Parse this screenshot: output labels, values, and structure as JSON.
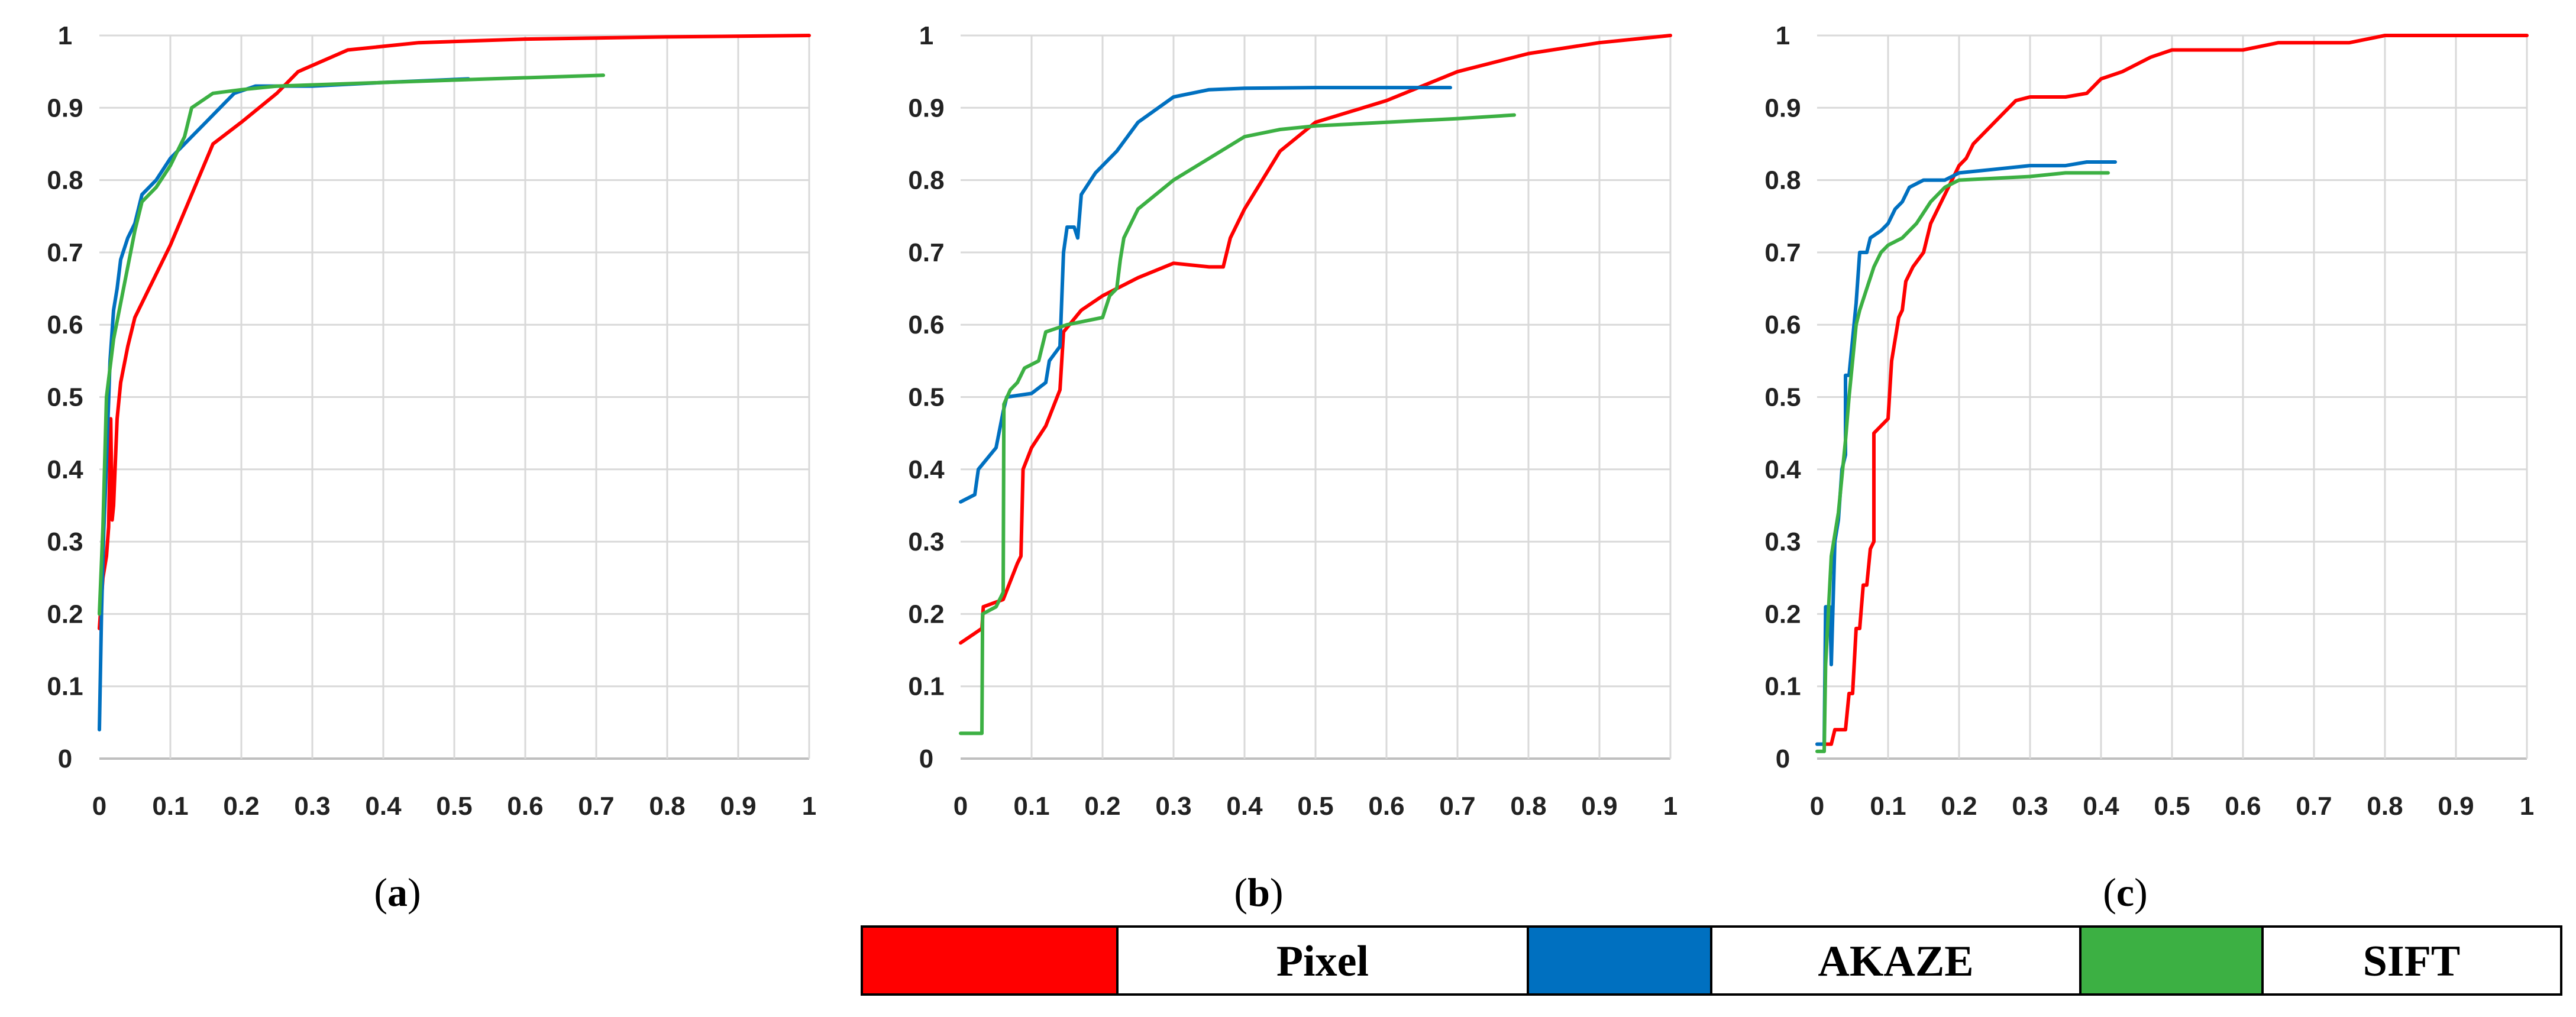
{
  "colors": {
    "Pixel": "#ff0000",
    "AKAZE": "#0070c0",
    "SIFT": "#3cb043"
  },
  "legend": {
    "pixel": "Pixel",
    "akaze": "AKAZE",
    "sift": "SIFT"
  },
  "chart_data": [
    {
      "type": "line",
      "caption": "a",
      "xlim": [
        0,
        1
      ],
      "ylim": [
        0,
        1
      ],
      "x_ticks": [
        "0",
        "0.1",
        "0.2",
        "0.3",
        "0.4",
        "0.5",
        "0.6",
        "0.7",
        "0.8",
        "0.9",
        "1"
      ],
      "y_ticks": [
        "0",
        "0.1",
        "0.2",
        "0.3",
        "0.4",
        "0.5",
        "0.6",
        "0.7",
        "0.8",
        "0.9",
        "1"
      ],
      "series": [
        {
          "name": "Pixel",
          "points": [
            [
              0.0,
              0.18
            ],
            [
              0.005,
              0.25
            ],
            [
              0.01,
              0.28
            ],
            [
              0.013,
              0.32
            ],
            [
              0.016,
              0.47
            ],
            [
              0.018,
              0.33
            ],
            [
              0.02,
              0.35
            ],
            [
              0.025,
              0.47
            ],
            [
              0.03,
              0.52
            ],
            [
              0.04,
              0.57
            ],
            [
              0.05,
              0.61
            ],
            [
              0.07,
              0.65
            ],
            [
              0.1,
              0.71
            ],
            [
              0.13,
              0.78
            ],
            [
              0.16,
              0.85
            ],
            [
              0.2,
              0.88
            ],
            [
              0.25,
              0.92
            ],
            [
              0.28,
              0.95
            ],
            [
              0.35,
              0.98
            ],
            [
              0.45,
              0.99
            ],
            [
              0.6,
              0.995
            ],
            [
              0.8,
              0.998
            ],
            [
              1.0,
              1.0
            ]
          ]
        },
        {
          "name": "AKAZE",
          "points": [
            [
              0.0,
              0.04
            ],
            [
              0.003,
              0.2
            ],
            [
              0.006,
              0.31
            ],
            [
              0.01,
              0.41
            ],
            [
              0.015,
              0.55
            ],
            [
              0.02,
              0.62
            ],
            [
              0.025,
              0.65
            ],
            [
              0.03,
              0.69
            ],
            [
              0.04,
              0.72
            ],
            [
              0.05,
              0.74
            ],
            [
              0.06,
              0.78
            ],
            [
              0.08,
              0.8
            ],
            [
              0.1,
              0.83
            ],
            [
              0.13,
              0.86
            ],
            [
              0.15,
              0.88
            ],
            [
              0.19,
              0.92
            ],
            [
              0.22,
              0.93
            ],
            [
              0.3,
              0.93
            ],
            [
              0.4,
              0.935
            ],
            [
              0.52,
              0.94
            ]
          ]
        },
        {
          "name": "SIFT",
          "points": [
            [
              0.0,
              0.2
            ],
            [
              0.005,
              0.32
            ],
            [
              0.01,
              0.5
            ],
            [
              0.02,
              0.58
            ],
            [
              0.03,
              0.63
            ],
            [
              0.04,
              0.68
            ],
            [
              0.05,
              0.73
            ],
            [
              0.06,
              0.77
            ],
            [
              0.08,
              0.79
            ],
            [
              0.1,
              0.82
            ],
            [
              0.12,
              0.86
            ],
            [
              0.13,
              0.9
            ],
            [
              0.16,
              0.92
            ],
            [
              0.2,
              0.925
            ],
            [
              0.25,
              0.93
            ],
            [
              0.4,
              0.935
            ],
            [
              0.55,
              0.94
            ],
            [
              0.71,
              0.945
            ]
          ]
        }
      ]
    },
    {
      "type": "line",
      "caption": "b",
      "xlim": [
        0,
        1
      ],
      "ylim": [
        0,
        1
      ],
      "x_ticks": [
        "0",
        "0.1",
        "0.2",
        "0.3",
        "0.4",
        "0.5",
        "0.6",
        "0.7",
        "0.8",
        "0.9",
        "1"
      ],
      "y_ticks": [
        "0",
        "0.1",
        "0.2",
        "0.3",
        "0.4",
        "0.5",
        "0.6",
        "0.7",
        "0.8",
        "0.9",
        "1"
      ],
      "series": [
        {
          "name": "Pixel",
          "points": [
            [
              0.0,
              0.16
            ],
            [
              0.03,
              0.18
            ],
            [
              0.032,
              0.21
            ],
            [
              0.06,
              0.22
            ],
            [
              0.08,
              0.27
            ],
            [
              0.085,
              0.28
            ],
            [
              0.088,
              0.4
            ],
            [
              0.1,
              0.43
            ],
            [
              0.12,
              0.46
            ],
            [
              0.14,
              0.51
            ],
            [
              0.145,
              0.59
            ],
            [
              0.17,
              0.62
            ],
            [
              0.2,
              0.64
            ],
            [
              0.25,
              0.665
            ],
            [
              0.3,
              0.685
            ],
            [
              0.35,
              0.68
            ],
            [
              0.37,
              0.68
            ],
            [
              0.38,
              0.72
            ],
            [
              0.4,
              0.76
            ],
            [
              0.45,
              0.84
            ],
            [
              0.5,
              0.88
            ],
            [
              0.6,
              0.91
            ],
            [
              0.7,
              0.95
            ],
            [
              0.8,
              0.975
            ],
            [
              0.9,
              0.99
            ],
            [
              1.0,
              1.0
            ]
          ]
        },
        {
          "name": "AKAZE",
          "points": [
            [
              0.0,
              0.355
            ],
            [
              0.02,
              0.365
            ],
            [
              0.025,
              0.4
            ],
            [
              0.05,
              0.43
            ],
            [
              0.06,
              0.48
            ],
            [
              0.065,
              0.5
            ],
            [
              0.1,
              0.505
            ],
            [
              0.12,
              0.52
            ],
            [
              0.125,
              0.55
            ],
            [
              0.14,
              0.57
            ],
            [
              0.145,
              0.7
            ],
            [
              0.15,
              0.735
            ],
            [
              0.16,
              0.735
            ],
            [
              0.165,
              0.72
            ],
            [
              0.17,
              0.78
            ],
            [
              0.19,
              0.81
            ],
            [
              0.22,
              0.84
            ],
            [
              0.25,
              0.88
            ],
            [
              0.3,
              0.915
            ],
            [
              0.35,
              0.925
            ],
            [
              0.4,
              0.927
            ],
            [
              0.5,
              0.928
            ],
            [
              0.6,
              0.928
            ],
            [
              0.69,
              0.928
            ]
          ]
        },
        {
          "name": "SIFT",
          "points": [
            [
              0.0,
              0.035
            ],
            [
              0.03,
              0.035
            ],
            [
              0.031,
              0.2
            ],
            [
              0.05,
              0.21
            ],
            [
              0.06,
              0.23
            ],
            [
              0.061,
              0.49
            ],
            [
              0.07,
              0.51
            ],
            [
              0.08,
              0.52
            ],
            [
              0.09,
              0.54
            ],
            [
              0.11,
              0.55
            ],
            [
              0.12,
              0.59
            ],
            [
              0.15,
              0.6
            ],
            [
              0.2,
              0.61
            ],
            [
              0.21,
              0.64
            ],
            [
              0.22,
              0.65
            ],
            [
              0.225,
              0.69
            ],
            [
              0.23,
              0.72
            ],
            [
              0.25,
              0.76
            ],
            [
              0.3,
              0.8
            ],
            [
              0.35,
              0.83
            ],
            [
              0.4,
              0.86
            ],
            [
              0.45,
              0.87
            ],
            [
              0.5,
              0.875
            ],
            [
              0.6,
              0.88
            ],
            [
              0.7,
              0.885
            ],
            [
              0.78,
              0.89
            ]
          ]
        }
      ]
    },
    {
      "type": "line",
      "caption": "c",
      "xlim": [
        0,
        1
      ],
      "ylim": [
        0,
        1
      ],
      "x_ticks": [
        "0",
        "0.1",
        "0.2",
        "0.3",
        "0.4",
        "0.5",
        "0.6",
        "0.7",
        "0.8",
        "0.9",
        "1"
      ],
      "y_ticks": [
        "0",
        "0.1",
        "0.2",
        "0.3",
        "0.4",
        "0.5",
        "0.6",
        "0.7",
        "0.8",
        "0.9",
        "1"
      ],
      "series": [
        {
          "name": "Pixel",
          "points": [
            [
              0.0,
              0.02
            ],
            [
              0.02,
              0.02
            ],
            [
              0.025,
              0.04
            ],
            [
              0.04,
              0.04
            ],
            [
              0.045,
              0.09
            ],
            [
              0.05,
              0.09
            ],
            [
              0.055,
              0.18
            ],
            [
              0.06,
              0.18
            ],
            [
              0.065,
              0.24
            ],
            [
              0.07,
              0.24
            ],
            [
              0.075,
              0.29
            ],
            [
              0.08,
              0.3
            ],
            [
              0.08,
              0.45
            ],
            [
              0.09,
              0.46
            ],
            [
              0.1,
              0.47
            ],
            [
              0.105,
              0.55
            ],
            [
              0.11,
              0.58
            ],
            [
              0.115,
              0.61
            ],
            [
              0.12,
              0.62
            ],
            [
              0.125,
              0.66
            ],
            [
              0.135,
              0.68
            ],
            [
              0.15,
              0.7
            ],
            [
              0.16,
              0.74
            ],
            [
              0.17,
              0.76
            ],
            [
              0.18,
              0.78
            ],
            [
              0.19,
              0.8
            ],
            [
              0.2,
              0.82
            ],
            [
              0.21,
              0.83
            ],
            [
              0.22,
              0.85
            ],
            [
              0.24,
              0.87
            ],
            [
              0.26,
              0.89
            ],
            [
              0.28,
              0.91
            ],
            [
              0.3,
              0.915
            ],
            [
              0.35,
              0.915
            ],
            [
              0.38,
              0.92
            ],
            [
              0.4,
              0.94
            ],
            [
              0.43,
              0.95
            ],
            [
              0.47,
              0.97
            ],
            [
              0.5,
              0.98
            ],
            [
              0.6,
              0.98
            ],
            [
              0.65,
              0.99
            ],
            [
              0.75,
              0.99
            ],
            [
              0.8,
              1.0
            ],
            [
              1.0,
              1.0
            ]
          ]
        },
        {
          "name": "AKAZE",
          "points": [
            [
              0.0,
              0.02
            ],
            [
              0.01,
              0.02
            ],
            [
              0.012,
              0.21
            ],
            [
              0.018,
              0.21
            ],
            [
              0.02,
              0.13
            ],
            [
              0.025,
              0.3
            ],
            [
              0.03,
              0.33
            ],
            [
              0.035,
              0.4
            ],
            [
              0.04,
              0.42
            ],
            [
              0.04,
              0.53
            ],
            [
              0.045,
              0.53
            ],
            [
              0.05,
              0.58
            ],
            [
              0.055,
              0.63
            ],
            [
              0.06,
              0.7
            ],
            [
              0.07,
              0.7
            ],
            [
              0.075,
              0.72
            ],
            [
              0.09,
              0.73
            ],
            [
              0.1,
              0.74
            ],
            [
              0.11,
              0.76
            ],
            [
              0.12,
              0.77
            ],
            [
              0.13,
              0.79
            ],
            [
              0.14,
              0.795
            ],
            [
              0.15,
              0.8
            ],
            [
              0.18,
              0.8
            ],
            [
              0.2,
              0.81
            ],
            [
              0.25,
              0.815
            ],
            [
              0.3,
              0.82
            ],
            [
              0.35,
              0.82
            ],
            [
              0.38,
              0.825
            ],
            [
              0.42,
              0.825
            ]
          ]
        },
        {
          "name": "SIFT",
          "points": [
            [
              0.0,
              0.01
            ],
            [
              0.01,
              0.01
            ],
            [
              0.012,
              0.13
            ],
            [
              0.02,
              0.28
            ],
            [
              0.03,
              0.34
            ],
            [
              0.04,
              0.44
            ],
            [
              0.045,
              0.5
            ],
            [
              0.05,
              0.55
            ],
            [
              0.055,
              0.6
            ],
            [
              0.06,
              0.62
            ],
            [
              0.07,
              0.65
            ],
            [
              0.08,
              0.68
            ],
            [
              0.09,
              0.7
            ],
            [
              0.1,
              0.71
            ],
            [
              0.12,
              0.72
            ],
            [
              0.14,
              0.74
            ],
            [
              0.16,
              0.77
            ],
            [
              0.18,
              0.79
            ],
            [
              0.2,
              0.8
            ],
            [
              0.3,
              0.805
            ],
            [
              0.35,
              0.81
            ],
            [
              0.41,
              0.81
            ]
          ]
        }
      ]
    }
  ]
}
